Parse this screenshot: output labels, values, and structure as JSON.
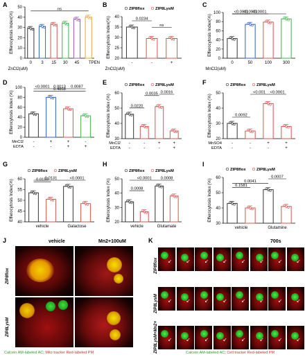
{
  "colors": {
    "black": "#333333",
    "blue": "#2f5fd0",
    "red": "#d9534f",
    "green": "#3cb44b",
    "orange": "#e8a33d"
  },
  "chart_data": [
    {
      "id": "A",
      "type": "bar",
      "ylabel": "Efferocytosis Index(%)",
      "xlabel": "ZnCl2(uM)",
      "categories": [
        "0",
        "3",
        "15",
        "30",
        "45",
        "TPEN"
      ],
      "ylim": [
        0,
        50
      ],
      "yticks": [
        0,
        10,
        20,
        30,
        40,
        50
      ],
      "values": [
        29,
        31,
        33,
        34,
        38,
        40
      ],
      "colors": [
        "#333333",
        "#2f5fd0",
        "#d9534f",
        "#3cb44b",
        "#9b59b6",
        "#e8a33d"
      ],
      "annotations": [
        {
          "text": "ns",
          "from": 0,
          "to": 5
        }
      ]
    },
    {
      "id": "B",
      "type": "bar",
      "ylabel": "Efferocytosis Index(%)",
      "xlabel": "ZnCl2(uM)",
      "legend": [
        "ZIP8flox",
        "ZIP8LysM"
      ],
      "categories": [
        "-",
        "-",
        "+"
      ],
      "ylim": [
        20,
        40
      ],
      "yticks": [
        20,
        25,
        30,
        35,
        40
      ],
      "values": [
        35,
        29.5,
        29.5
      ],
      "colors": [
        "#333333",
        "#d9534f",
        "#d9534f"
      ],
      "annotations": [
        {
          "text": "0.0234",
          "from": 0,
          "to": 1
        },
        {
          "text": "ns",
          "from": 1,
          "to": 2
        }
      ]
    },
    {
      "id": "C",
      "type": "bar",
      "ylabel": "Efferocytosis Index(%)",
      "xlabel": "MnCl2(uM)",
      "categories": [
        "0",
        "50",
        "100",
        "300"
      ],
      "ylim": [
        0,
        100
      ],
      "yticks": [
        0,
        20,
        40,
        60,
        80,
        100
      ],
      "values": [
        43,
        74,
        79,
        86
      ],
      "colors": [
        "#333333",
        "#2f5fd0",
        "#d9534f",
        "#3cb44b"
      ],
      "annotations": [
        {
          "text": "<0.0001",
          "from": 0,
          "to": 3
        },
        {
          "text": "<0.0001",
          "from": 0,
          "to": 2
        },
        {
          "text": "<0.0001",
          "from": 0,
          "to": 1
        }
      ]
    },
    {
      "id": "D",
      "type": "bar",
      "ylabel": "Efferocytosis Index (%)",
      "rowlabels": [
        "MnCl2",
        "EDTA"
      ],
      "categories": [
        "",
        "",
        "",
        ""
      ],
      "rowsigns": [
        [
          "-",
          "+",
          "+",
          "-"
        ],
        [
          "-",
          "-",
          "+",
          "+"
        ]
      ],
      "ylim": [
        0,
        100
      ],
      "yticks": [
        0,
        20,
        40,
        60,
        80,
        100
      ],
      "values": [
        47,
        80,
        57,
        43
      ],
      "colors": [
        "#333333",
        "#2f5fd0",
        "#d9534f",
        "#3cb44b"
      ],
      "annotations": [
        {
          "text": "0.4868",
          "from": 0,
          "to": 3
        },
        {
          "text": "<0.0001",
          "from": 0,
          "to": 1
        },
        {
          "text": "0.0013",
          "from": 1,
          "to": 2
        },
        {
          "text": "0.0087",
          "from": 2,
          "to": 3
        }
      ]
    },
    {
      "id": "E",
      "type": "bar",
      "ylabel": "Efferocytosis Index (%)",
      "legend": [
        "ZIP8flox",
        "ZIP8LysM"
      ],
      "rowlabels": [
        "MnCl2",
        "EDTA"
      ],
      "rowsigns": [
        [
          "-",
          "-",
          "+",
          "+"
        ],
        [
          "-",
          "-",
          "-",
          "+"
        ]
      ],
      "categories": [
        "",
        "",
        "",
        ""
      ],
      "ylim": [
        30,
        60
      ],
      "yticks": [
        30,
        40,
        50,
        60
      ],
      "values": [
        46,
        38,
        51,
        35
      ],
      "colors": [
        "#333333",
        "#d9534f",
        "#d9534f",
        "#d9534f"
      ],
      "annotations": [
        {
          "text": "0.0220",
          "from": 0,
          "to": 1
        },
        {
          "text": "0.0035",
          "from": 1,
          "to": 2
        },
        {
          "text": "0.0016",
          "from": 2,
          "to": 3
        }
      ]
    },
    {
      "id": "F",
      "type": "bar",
      "ylabel": "Efferocytosis Index (%)",
      "legend": [
        "ZIP8flox",
        "ZIP8LysM"
      ],
      "rowlabels": [
        "MnSO4",
        "EDTA"
      ],
      "rowsigns": [
        [
          "-",
          "-",
          "+",
          "+"
        ],
        [
          "-",
          "-",
          "-",
          "+"
        ]
      ],
      "categories": [
        "",
        "",
        "",
        ""
      ],
      "ylim": [
        20,
        50
      ],
      "yticks": [
        20,
        30,
        40,
        50
      ],
      "values": [
        30,
        25,
        43,
        28
      ],
      "colors": [
        "#333333",
        "#d9534f",
        "#d9534f",
        "#d9534f"
      ],
      "annotations": [
        {
          "text": "0.0092",
          "from": 0,
          "to": 1
        },
        {
          "text": "<0.001",
          "from": 1,
          "to": 2
        },
        {
          "text": "<0.0001",
          "from": 2,
          "to": 3
        }
      ]
    },
    {
      "id": "G",
      "type": "bar",
      "ylabel": "Efferocytosis Index(%)",
      "legend": [
        "ZIP8flox",
        "ZIP8LysM"
      ],
      "categories": [
        "vehicle",
        "",
        "Galactose",
        ""
      ],
      "ylim": [
        40,
        60
      ],
      "yticks": [
        40,
        45,
        50,
        55,
        60
      ],
      "values": [
        53.5,
        50.5,
        56.5,
        48.5
      ],
      "colors": [
        "#333333",
        "#d9534f",
        "#333333",
        "#d9534f"
      ],
      "annotations": [
        {
          "text": "0.0131",
          "from": 0,
          "to": 2
        },
        {
          "text": "0.0159",
          "from": 0,
          "to": 1
        },
        {
          "text": "<0.0001",
          "from": 2,
          "to": 3
        }
      ]
    },
    {
      "id": "H",
      "type": "bar",
      "ylabel": "Efferocytosis Index (%)",
      "legend": [
        "ZIP8flox",
        "ZIP8LysM"
      ],
      "categories": [
        "vehicle",
        "",
        "Glutamate",
        ""
      ],
      "ylim": [
        20,
        50
      ],
      "yticks": [
        20,
        30,
        40,
        50
      ],
      "values": [
        34,
        27,
        45,
        38
      ],
      "colors": [
        "#333333",
        "#d9534f",
        "#333333",
        "#d9534f"
      ],
      "annotations": [
        {
          "text": "<0.0001",
          "from": 0,
          "to": 2
        },
        {
          "text": "0.0008",
          "from": 0,
          "to": 1
        },
        {
          "text": "0.0008",
          "from": 2,
          "to": 3
        }
      ]
    },
    {
      "id": "I",
      "type": "bar",
      "ylabel": "Efferocytosis Index (%)",
      "legend": [
        "ZIP8flox",
        "ZIP8LysM"
      ],
      "categories": [
        "vehicle",
        "",
        "Glutamine",
        ""
      ],
      "ylim": [
        30,
        60
      ],
      "yticks": [
        30,
        40,
        50,
        60
      ],
      "values": [
        43,
        40,
        52,
        41
      ],
      "colors": [
        "#333333",
        "#d9534f",
        "#333333",
        "#d9534f"
      ],
      "annotations": [
        {
          "text": "0.0041",
          "from": 0,
          "to": 2
        },
        {
          "text": "0.0007",
          "from": 2,
          "to": 3
        },
        {
          "text": "0.1581",
          "from": 0,
          "to": 1
        }
      ]
    }
  ],
  "panel_j": {
    "col_labels": [
      "vehicle",
      "Mn2+100uM"
    ],
    "row_labels": [
      "ZIP8flox",
      "ZIP8LysM"
    ],
    "caption_green": "Calcein AM-labeled AC",
    "caption_sep": "; ",
    "caption_red": "Mito tracker Red-labeled PM"
  },
  "panel_k": {
    "time_label": "700s",
    "row_labels": [
      "ZIP8flox",
      "ZIP8LysM",
      "ZIP8LysM+Mn2+"
    ],
    "caption_green": "Calcein AM-labeled AC",
    "caption_sep": "; ",
    "caption_red": "Cell tracker Red-labeled PM"
  },
  "panel_letters": [
    "A",
    "B",
    "C",
    "D",
    "E",
    "F",
    "G",
    "H",
    "I",
    "J",
    "K"
  ]
}
